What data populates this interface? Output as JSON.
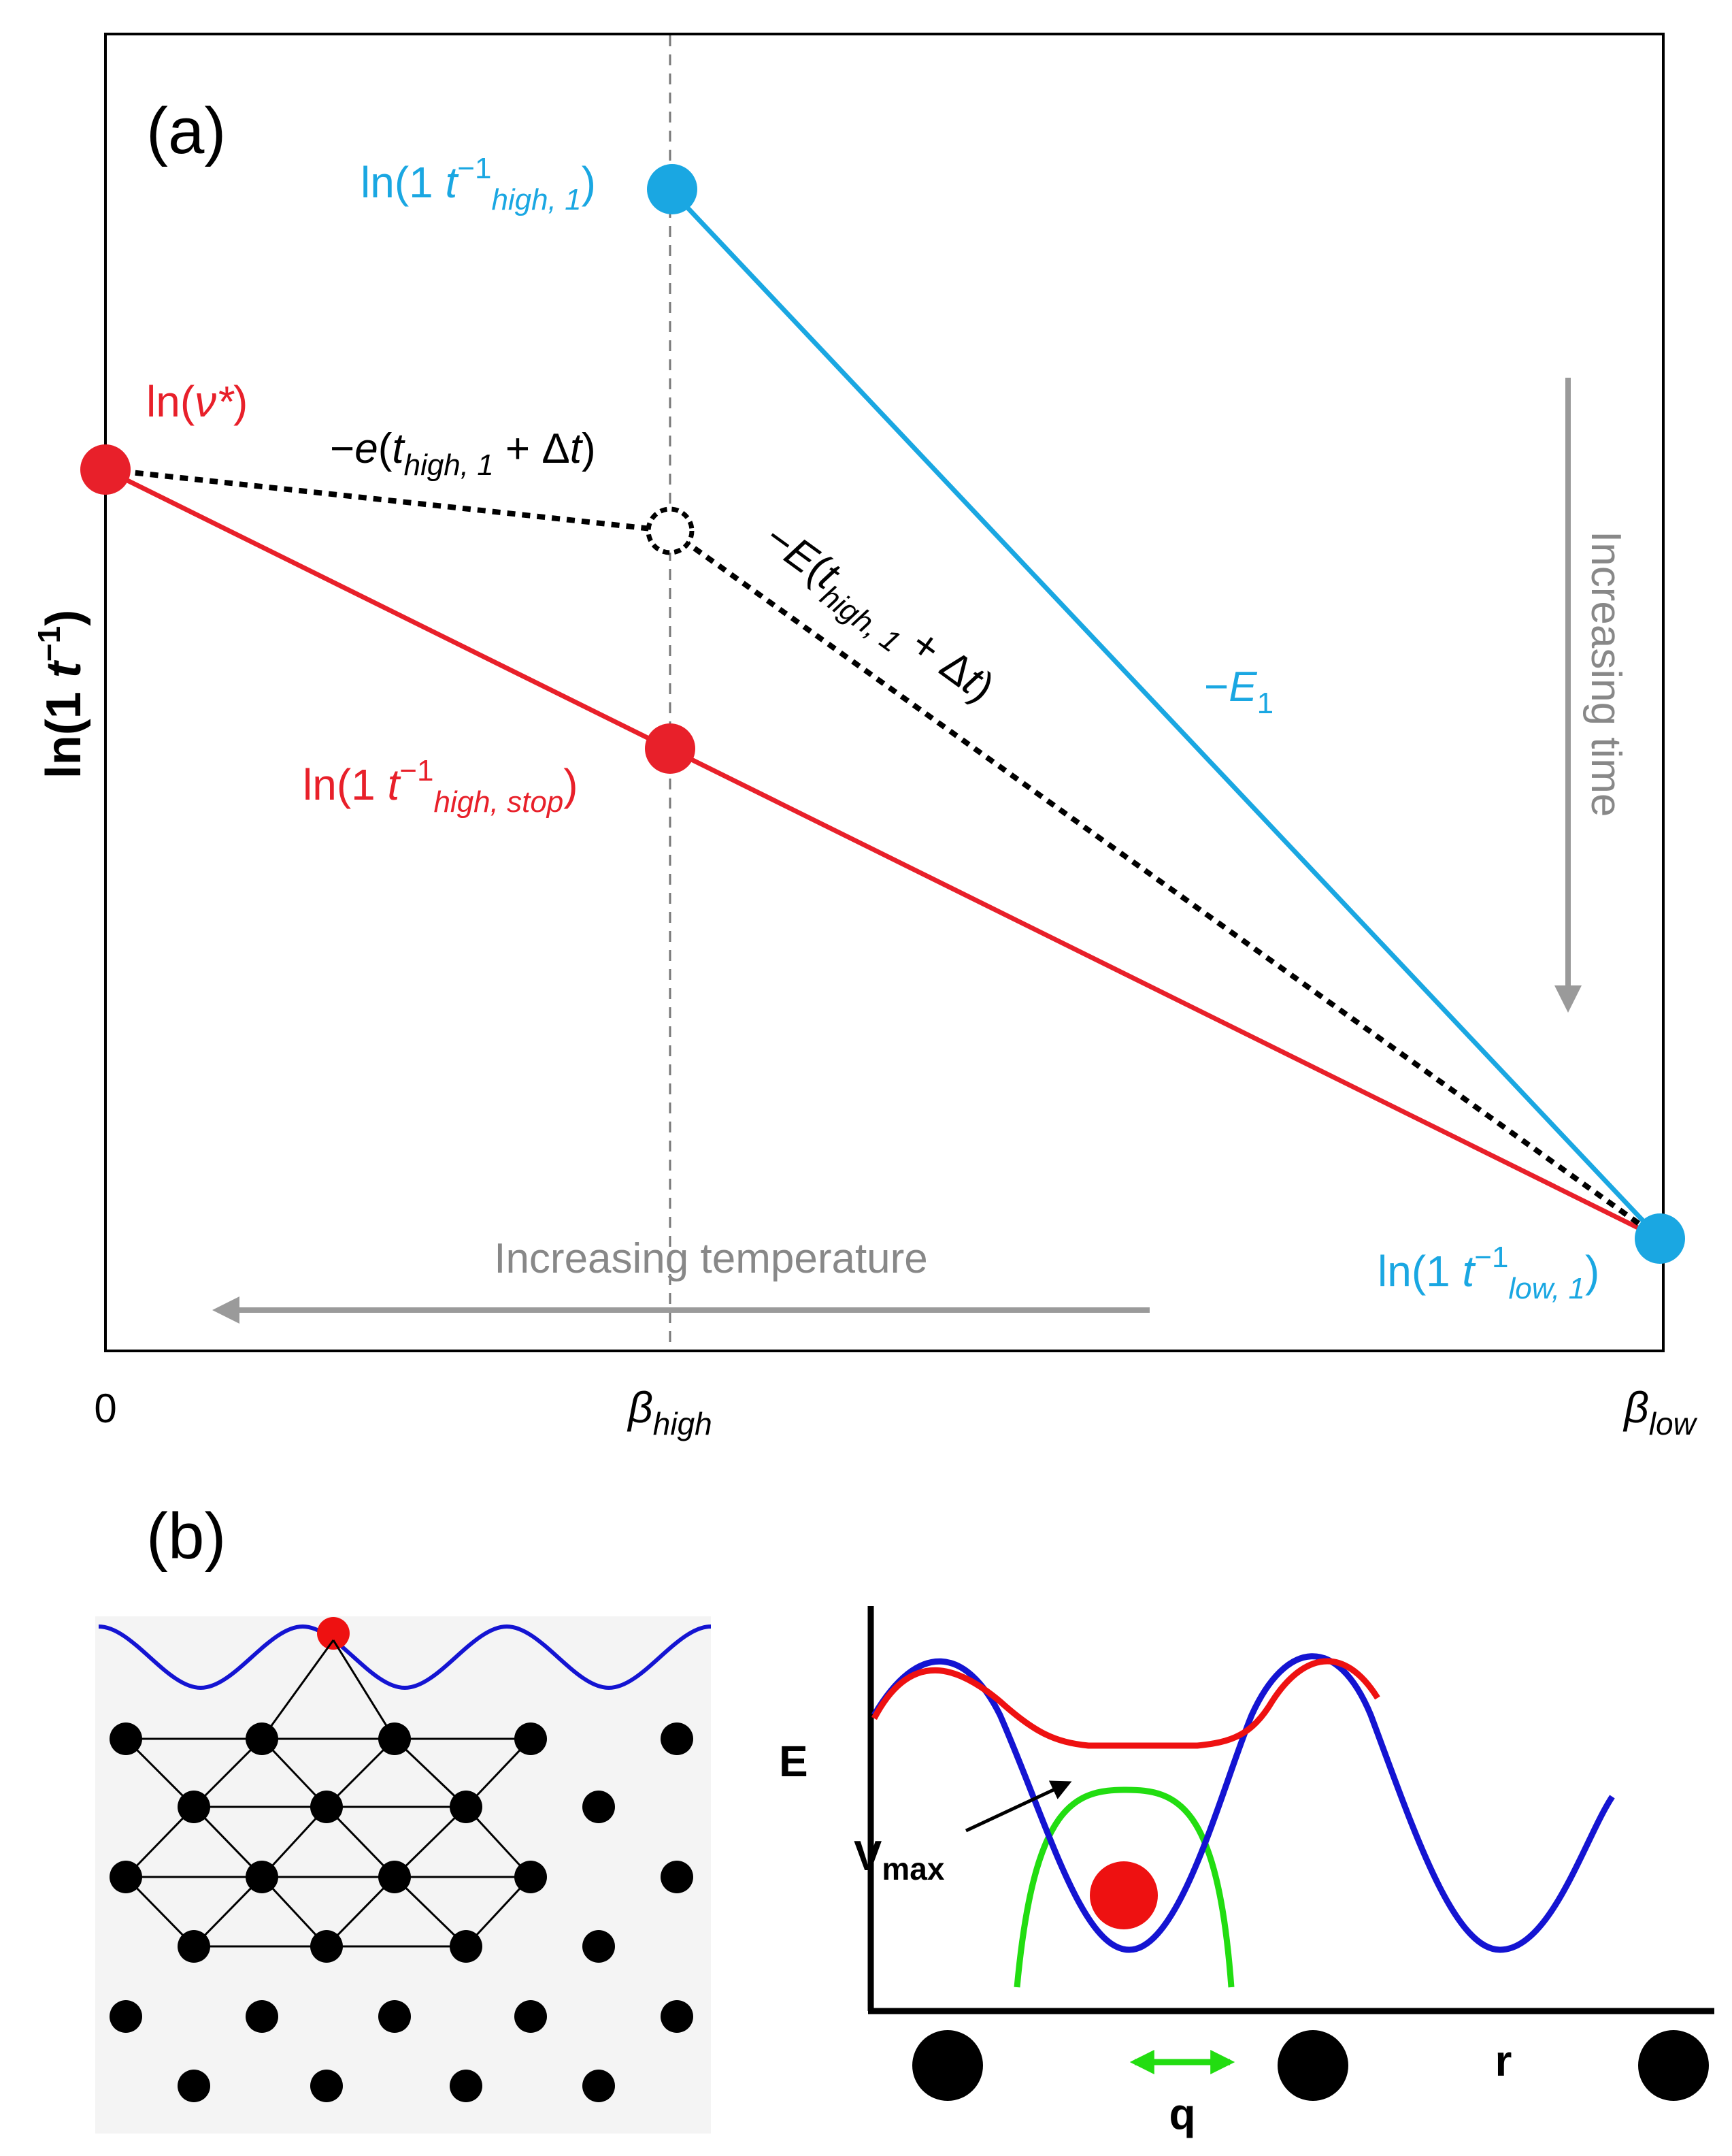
{
  "panel_a": {
    "panel_label": "(a)",
    "y_axis_label_main": "ln(1 ",
    "y_axis_label_t": "t",
    "y_axis_label_exp": "−1",
    "y_axis_label_close": ")",
    "x_tick_zero": "0",
    "x_tick_beta_high_sym": "β",
    "x_tick_beta_high_sub": "high",
    "x_tick_beta_low_sym": "β",
    "x_tick_beta_low_sub": "low",
    "label_blue_top": {
      "pre": "ln(1 ",
      "t": "t",
      "exp": "−1",
      "sub": "high, 1",
      "post": ")"
    },
    "label_blue_bottom": {
      "pre": "ln(1 ",
      "t": "t",
      "exp": "−1",
      "sub": "low, 1",
      "post": ")"
    },
    "label_red_top": {
      "pre": "ln(",
      "sym": "ν*",
      "post": ")"
    },
    "label_red_mid": {
      "pre": "ln(1 ",
      "t": "t",
      "exp": "−1",
      "sub": "high, stop",
      "post": ")"
    },
    "label_e_small": {
      "pre": "−",
      "e": "e",
      "open": "(",
      "t": "t",
      "sub": "high, 1",
      "rest": " + Δ",
      "t2": "t",
      "close": ")"
    },
    "label_E_large": {
      "pre": "−",
      "E": "E",
      "open": "(",
      "t": "t",
      "sub": "high, 1",
      "rest": " + Δ",
      "t2": "t",
      "close": ")"
    },
    "label_E1": {
      "pre": "−",
      "E": "E",
      "sub": "1"
    },
    "arrow_time_label": "Increasing time",
    "arrow_temp_label": "Increasing temperature",
    "colors": {
      "blue": "#1aa7e2",
      "red": "#e8202a",
      "black": "#000000",
      "gray": "#9a9a9a"
    }
  },
  "panel_b": {
    "panel_label": "(b)",
    "axis_E": "E",
    "axis_r": "r",
    "vmax_main": "V",
    "vmax_sub": "max",
    "q_label": "q",
    "colors": {
      "blue": "#1414d2",
      "red": "#ee1111",
      "green": "#22dd11",
      "lattice_bg": "#f4f4f4"
    }
  }
}
